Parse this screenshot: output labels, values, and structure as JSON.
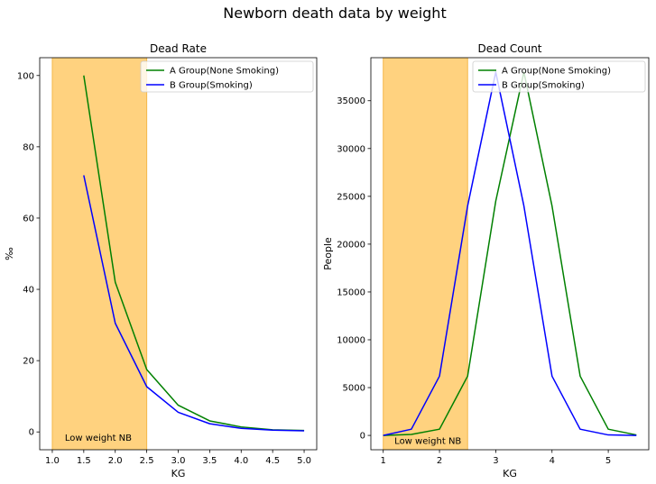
{
  "suptitle": "Newborn death data by weight",
  "colors": {
    "band": "#ffd27f",
    "band_edge": "#f5b84a",
    "series_a": "#008000",
    "series_b": "#0000ff"
  },
  "chart_data": [
    {
      "type": "line",
      "title": "Dead Rate",
      "xlabel": "KG",
      "ylabel": "‰",
      "xlim": [
        0.8,
        5.2
      ],
      "ylim": [
        -5,
        105
      ],
      "xticks": [
        1.0,
        1.5,
        2.0,
        2.5,
        3.0,
        3.5,
        4.0,
        4.5,
        5.0
      ],
      "xtick_labels": [
        "1.0",
        "1.5",
        "2.0",
        "2.5",
        "3.0",
        "3.5",
        "4.0",
        "4.5",
        "5.0"
      ],
      "yticks": [
        0,
        20,
        40,
        60,
        80,
        100
      ],
      "ytick_labels": [
        "0",
        "20",
        "40",
        "60",
        "80",
        "100"
      ],
      "band": {
        "x0": 1.0,
        "x1": 2.5,
        "label": "Low weight NB",
        "label_x": 1.2,
        "label_y": -1.5
      },
      "legend": "top-right",
      "series": [
        {
          "name": "A Group(None Smoking)",
          "color_key": "series_a",
          "x": [
            1.5,
            2.0,
            2.5,
            3.0,
            3.5,
            4.0,
            4.5,
            5.0
          ],
          "values": [
            100,
            42,
            17.5,
            7.5,
            3.1,
            1.4,
            0.6,
            0.4
          ]
        },
        {
          "name": "B Group(Smoking)",
          "color_key": "series_b",
          "x": [
            1.5,
            2.0,
            2.5,
            3.0,
            3.5,
            4.0,
            4.5,
            5.0
          ],
          "values": [
            72,
            30.5,
            12.7,
            5.5,
            2.3,
            1.0,
            0.5,
            0.3
          ]
        }
      ]
    },
    {
      "type": "line",
      "title": "Dead Count",
      "xlabel": "KG",
      "ylabel": "People",
      "xlim": [
        0.78,
        5.72
      ],
      "ylim": [
        -1500,
        39500
      ],
      "xticks": [
        1,
        2,
        3,
        4,
        5
      ],
      "xtick_labels": [
        "1",
        "2",
        "3",
        "4",
        "5"
      ],
      "yticks": [
        0,
        5000,
        10000,
        15000,
        20000,
        25000,
        30000,
        35000
      ],
      "ytick_labels": [
        "0",
        "5000",
        "10000",
        "15000",
        "20000",
        "25000",
        "30000",
        "35000"
      ],
      "band": {
        "x0": 1.0,
        "x1": 2.5,
        "label": "Low weight NB",
        "label_x": 1.2,
        "label_y": -500
      },
      "legend": "top-right",
      "series": [
        {
          "name": "A Group(None Smoking)",
          "color_key": "series_a",
          "x": [
            1.0,
            1.5,
            2.0,
            2.5,
            3.0,
            3.5,
            4.0,
            4.5,
            5.0,
            5.5
          ],
          "values": [
            0,
            100,
            650,
            6200,
            24500,
            38000,
            24000,
            6200,
            650,
            50
          ]
        },
        {
          "name": "B Group(Smoking)",
          "color_key": "series_b",
          "x": [
            1.0,
            1.5,
            2.0,
            2.5,
            3.0,
            3.5,
            4.0,
            4.5,
            5.0,
            5.5
          ],
          "values": [
            0,
            650,
            6200,
            24000,
            38000,
            24000,
            6200,
            650,
            50,
            0
          ]
        }
      ]
    }
  ]
}
